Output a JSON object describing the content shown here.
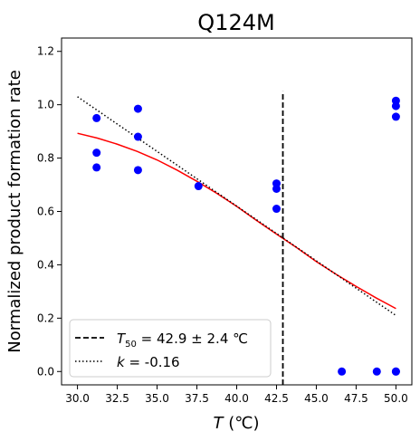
{
  "chart_data": {
    "type": "scatter",
    "title": "Q124M",
    "xlabel": {
      "symbol": "T",
      "unit": " (℃)"
    },
    "ylabel": "Normalized product formation rate",
    "xlim": [
      29.0,
      51.0
    ],
    "ylim": [
      -0.05,
      1.25
    ],
    "xticks": [
      30.0,
      32.5,
      35.0,
      37.5,
      40.0,
      42.5,
      45.0,
      47.5,
      50.0
    ],
    "xtick_labels": [
      "30.0",
      "32.5",
      "35.0",
      "37.5",
      "40.0",
      "42.5",
      "45.0",
      "47.5",
      "50.0"
    ],
    "yticks": [
      0.0,
      0.2,
      0.4,
      0.6,
      0.8,
      1.0,
      1.2
    ],
    "ytick_labels": [
      "0.0",
      "0.2",
      "0.4",
      "0.6",
      "0.8",
      "1.0",
      "1.2"
    ],
    "grid": false,
    "legend_position": "bottom-left",
    "points": {
      "color": "#0000ff",
      "x": [
        31.2,
        31.2,
        31.2,
        33.8,
        33.8,
        33.8,
        37.6,
        42.5,
        42.5,
        42.5,
        46.6,
        48.8,
        50.0,
        50.0,
        50.0,
        50.0,
        50.0
      ],
      "y": [
        0.95,
        0.82,
        0.765,
        0.985,
        0.88,
        0.755,
        0.695,
        0.705,
        0.685,
        0.61,
        0.0,
        0.0,
        1.015,
        0.995,
        0.955,
        0.0,
        0.0
      ]
    },
    "sigmoid_fit": {
      "color": "#ff0000",
      "x": [
        30.0,
        31.25,
        32.5,
        33.75,
        35.0,
        36.25,
        37.5,
        38.75,
        40.0,
        41.25,
        42.5,
        43.75,
        45.0,
        46.25,
        47.5,
        48.75,
        50.0
      ],
      "y": [
        0.893,
        0.875,
        0.852,
        0.825,
        0.793,
        0.755,
        0.713,
        0.668,
        0.619,
        0.566,
        0.515,
        0.465,
        0.412,
        0.364,
        0.319,
        0.276,
        0.236
      ]
    },
    "t50": {
      "label_symbol": "T",
      "label_sub": "50",
      "label_value": " = 42.9 ± 2.4 ℃",
      "x": 42.9,
      "y_range": [
        -0.05,
        1.05
      ],
      "color": "#000000"
    },
    "slope": {
      "label_symbol": "k",
      "label_value": " = -0.16",
      "x": [
        30.0,
        50.0
      ],
      "y": [
        1.03,
        0.21
      ],
      "color": "#000000"
    }
  }
}
